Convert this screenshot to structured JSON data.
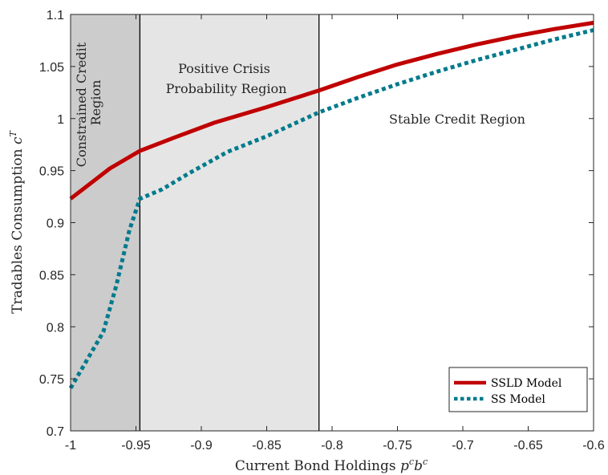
{
  "chart_data": {
    "type": "line",
    "xlabel": "Current Bond Holdings",
    "xlabel_math": {
      "base": "p",
      "sup1": "c",
      "base2": "b",
      "sup2": "c"
    },
    "ylabel": "Tradables Consumption",
    "ylabel_math": {
      "base": "c",
      "sup": "T"
    },
    "xlim": [
      -1,
      -0.6
    ],
    "ylim": [
      0.7,
      1.1
    ],
    "xticks": [
      -1,
      -0.95,
      -0.9,
      -0.85,
      -0.8,
      -0.75,
      -0.7,
      -0.65,
      -0.6
    ],
    "xtick_labels": [
      "-1",
      "-0.95",
      "-0.9",
      "-0.85",
      "-0.8",
      "-0.75",
      "-0.7",
      "-0.65",
      "-0.6"
    ],
    "yticks": [
      0.7,
      0.75,
      0.8,
      0.85,
      0.9,
      0.95,
      1,
      1.05,
      1.1
    ],
    "ytick_labels": [
      "0.7",
      "0.75",
      "0.8",
      "0.85",
      "0.9",
      "0.95",
      "1",
      "1.05",
      "1.1"
    ],
    "grid": false,
    "legend_position": "bottom-right",
    "regions": [
      {
        "name": "constrained",
        "x_from": -1,
        "x_to": -0.947,
        "color": "#cccccc",
        "label_lines": [
          "Constrained Credit",
          "Region"
        ]
      },
      {
        "name": "positive-crisis",
        "x_from": -0.947,
        "x_to": -0.81,
        "color": "#e5e5e5",
        "label_lines": [
          "Positive Crisis",
          "Probability Region"
        ]
      },
      {
        "name": "stable",
        "x_from": -0.81,
        "x_to": -0.6,
        "color": "#ffffff",
        "label_lines": [
          "Stable Credit Region"
        ]
      }
    ],
    "series": [
      {
        "name": "SSLD Model",
        "color": "#c00000",
        "style": "solid",
        "x": [
          -1,
          -0.97,
          -0.947,
          -0.92,
          -0.89,
          -0.85,
          -0.81,
          -0.78,
          -0.75,
          -0.72,
          -0.69,
          -0.66,
          -0.63,
          -0.6
        ],
        "y": [
          0.923,
          0.952,
          0.969,
          0.982,
          0.996,
          1.011,
          1.027,
          1.04,
          1.052,
          1.062,
          1.071,
          1.079,
          1.086,
          1.092
        ]
      },
      {
        "name": "SS Model",
        "color": "#007a8c",
        "style": "dotted",
        "x": [
          -1,
          -0.975,
          -0.965,
          -0.955,
          -0.947,
          -0.93,
          -0.91,
          -0.88,
          -0.85,
          -0.81,
          -0.78,
          -0.75,
          -0.72,
          -0.69,
          -0.66,
          -0.63,
          -0.6
        ],
        "y": [
          0.741,
          0.795,
          0.84,
          0.893,
          0.923,
          0.932,
          0.947,
          0.968,
          0.983,
          1.006,
          1.02,
          1.033,
          1.045,
          1.056,
          1.066,
          1.076,
          1.085
        ]
      }
    ]
  }
}
